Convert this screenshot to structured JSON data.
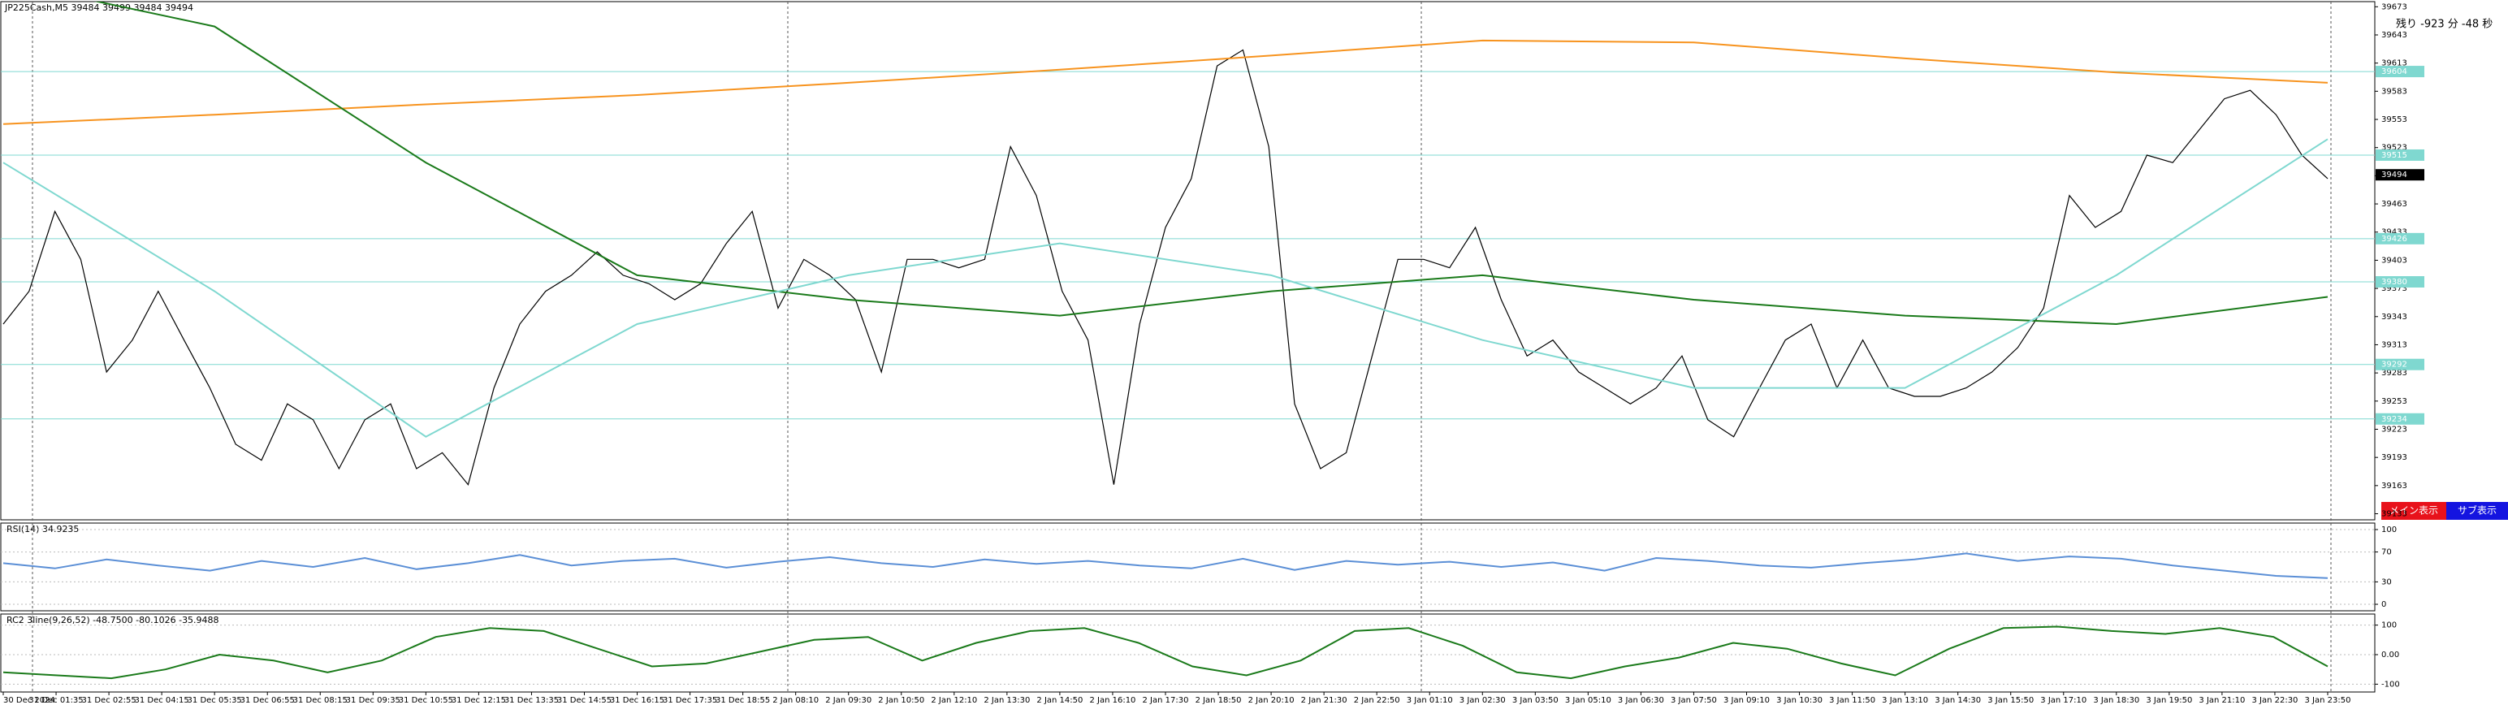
{
  "header": {
    "symbol_line": "JP225Cash,M5  39484 39499 39484 39494",
    "countdown": "残り -923 分 -48 秒"
  },
  "buttons": [
    "メイン表示",
    "サブ表示"
  ],
  "time_axis": [
    "30 Dec 2024",
    "31 Dec 01:35",
    "31 Dec 02:55",
    "31 Dec 04:15",
    "31 Dec 05:35",
    "31 Dec 06:55",
    "31 Dec 08:15",
    "31 Dec 09:35",
    "31 Dec 10:55",
    "31 Dec 12:15",
    "31 Dec 13:35",
    "31 Dec 14:55",
    "31 Dec 16:15",
    "31 Dec 17:35",
    "31 Dec 18:55",
    "2 Jan 08:10",
    "2 Jan 09:30",
    "2 Jan 10:50",
    "2 Jan 12:10",
    "2 Jan 13:30",
    "2 Jan 14:50",
    "2 Jan 16:10",
    "2 Jan 17:30",
    "2 Jan 18:50",
    "2 Jan 20:10",
    "2 Jan 21:30",
    "2 Jan 22:50",
    "3 Jan 01:10",
    "3 Jan 02:30",
    "3 Jan 03:50",
    "3 Jan 05:10",
    "3 Jan 06:30",
    "3 Jan 07:50",
    "3 Jan 09:10",
    "3 Jan 10:30",
    "3 Jan 11:50",
    "3 Jan 13:10",
    "3 Jan 14:30",
    "3 Jan 15:50",
    "3 Jan 17:10",
    "3 Jan 18:30",
    "3 Jan 19:50",
    "3 Jan 21:10",
    "3 Jan 22:30",
    "3 Jan 23:50"
  ],
  "chart_data": [
    {
      "type": "line",
      "ylim": [
        39130,
        39675
      ],
      "yticks": [
        39673,
        39643,
        39613,
        39583,
        39553,
        39523,
        39493,
        39463,
        39433,
        39403,
        39373,
        39343,
        39313,
        39283,
        39253,
        39223,
        39193,
        39163,
        39133
      ],
      "levels": [
        39604,
        39515,
        39426,
        39380,
        39292,
        39234
      ],
      "level_color": "#7fd8d0",
      "current_price": 39494,
      "series": [
        {
          "color": "#000000",
          "values": [
            39335,
            39370,
            39455,
            39404,
            39284,
            39318,
            39370,
            39318,
            39267,
            39207,
            39190,
            39250,
            39233,
            39181,
            39233,
            39250,
            39181,
            39198,
            39164,
            39267,
            39335,
            39370,
            39387,
            39412,
            39387,
            39378,
            39361,
            39378,
            39421,
            39455,
            39352,
            39404,
            39387,
            39361,
            39284,
            39404,
            39404,
            39395,
            39404,
            39524,
            39472,
            39370,
            39318,
            39164,
            39335,
            39438,
            39490,
            39610,
            39627,
            39524,
            39250,
            39181,
            39198,
            39301,
            39404,
            39404,
            39395,
            39438,
            39361,
            39301,
            39318,
            39284,
            39267,
            39250,
            39267,
            39301,
            39233,
            39215,
            39267,
            39318,
            39335,
            39267,
            39318,
            39267,
            39258,
            39258,
            39267,
            39284,
            39310,
            39352,
            39472,
            39438,
            39455,
            39515,
            39507,
            39541,
            39575,
            39584,
            39558,
            39515,
            39490
          ]
        },
        {
          "color": "#f7931e",
          "values": [
            39548,
            39558,
            39569,
            39579,
            39592,
            39606,
            39621,
            39637,
            39635,
            39618,
            39603,
            39592
          ]
        },
        {
          "color": "#1a7a1a",
          "values": [
            39700,
            39652,
            39507,
            39387,
            39361,
            39344,
            39370,
            39387,
            39361,
            39344,
            39335,
            39364
          ]
        },
        {
          "color": "#7fd8d0",
          "values": [
            39507,
            39370,
            39215,
            39335,
            39387,
            39421,
            39387,
            39318,
            39267,
            39267,
            39387,
            39532
          ]
        }
      ]
    },
    {
      "type": "line",
      "title": "RSI(14) 34.9235",
      "ylim": [
        0,
        100
      ],
      "yticks": [
        100,
        70,
        30,
        0
      ],
      "series": [
        {
          "color": "#5b8fd6",
          "values": [
            55,
            48,
            60,
            52,
            45,
            58,
            50,
            62,
            47,
            55,
            66,
            52,
            58,
            61,
            49,
            57,
            63,
            55,
            50,
            60,
            54,
            58,
            52,
            48,
            61,
            46,
            58,
            53,
            57,
            50,
            56,
            45,
            62,
            58,
            52,
            49,
            55,
            60,
            68,
            58,
            64,
            61,
            52,
            45,
            38,
            35
          ]
        }
      ]
    },
    {
      "type": "line",
      "title": "RC2 3line(9,26,52) -48.7500 -80.1026 -35.9488",
      "ylim": [
        -110,
        110
      ],
      "yticks": [
        100,
        {
          "value": 0,
          "label": "0.00"
        },
        -100
      ],
      "series": [
        {
          "color": "#1a7a1a",
          "values": [
            -60,
            -70,
            -80,
            -50,
            0,
            -20,
            -60,
            -20,
            60,
            90,
            80,
            20,
            -40,
            -30,
            10,
            50,
            60,
            -20,
            40,
            80,
            90,
            40,
            -40,
            -70,
            -20,
            80,
            90,
            30,
            -60,
            -80,
            -40,
            -10,
            40,
            20,
            -30,
            -70,
            20,
            90,
            95,
            80,
            70,
            90,
            60,
            -40
          ]
        }
      ]
    }
  ]
}
